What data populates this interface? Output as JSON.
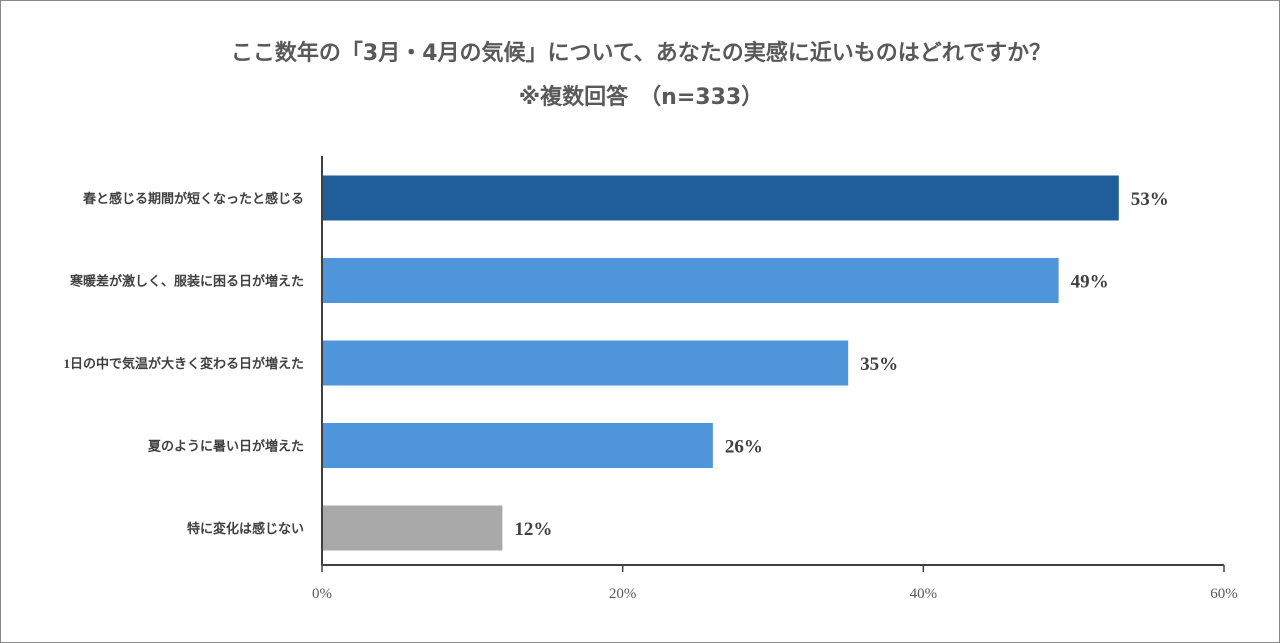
{
  "chart_data": {
    "type": "bar",
    "orientation": "horizontal",
    "title": "ここ数年の「3月・4月の気候」について、あなたの実感に近いものはどれですか？",
    "subtitle": "※複数回答　（n=333）",
    "categories": [
      "春と感じる期間が短くなったと感じる",
      "寒暖差が激しく、服装に困る日が増えた",
      "1日の中で気温が大きく変わる日が増えた",
      "夏のように暑い日が増えた",
      "特に変化は感じない"
    ],
    "values": [
      53,
      49,
      35,
      26,
      12
    ],
    "value_labels": [
      "53%",
      "49%",
      "35%",
      "26%",
      "12%"
    ],
    "bar_colors": [
      "#1f5e99",
      "#4f95d9",
      "#4f95d9",
      "#4f95d9",
      "#a9a9a9"
    ],
    "xlim": [
      0,
      60
    ],
    "xticks": [
      0,
      20,
      40,
      60
    ],
    "xtick_labels": [
      "0%",
      "20%",
      "40%",
      "60%"
    ],
    "grid": false,
    "legend": "none"
  }
}
